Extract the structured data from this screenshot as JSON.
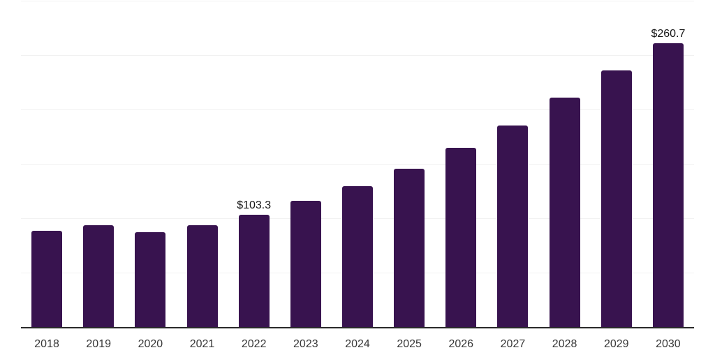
{
  "chart_data": {
    "type": "bar",
    "title": "",
    "xlabel": "",
    "ylabel": "",
    "categories": [
      "2018",
      "2019",
      "2020",
      "2021",
      "2022",
      "2023",
      "2024",
      "2025",
      "2026",
      "2027",
      "2028",
      "2029",
      "2030"
    ],
    "values": [
      88.7,
      93.4,
      87.0,
      93.4,
      103.3,
      115.8,
      129.6,
      145.6,
      164.7,
      185.0,
      210.7,
      235.7,
      260.7
    ],
    "data_labels": [
      "",
      "",
      "",
      "",
      "$103.3",
      "",
      "",
      "",
      "",
      "",
      "",
      "",
      "$260.7"
    ],
    "ylim": [
      0,
      300
    ],
    "gridline_step": 50,
    "grid": "horizontal",
    "legend": "none",
    "colors": {
      "bar": "#38134f",
      "axis": "#2a2a2a",
      "gridline": "#f1f1f1",
      "tick_label": "#383838",
      "data_label": "#141414",
      "background": "#ffffff"
    }
  }
}
